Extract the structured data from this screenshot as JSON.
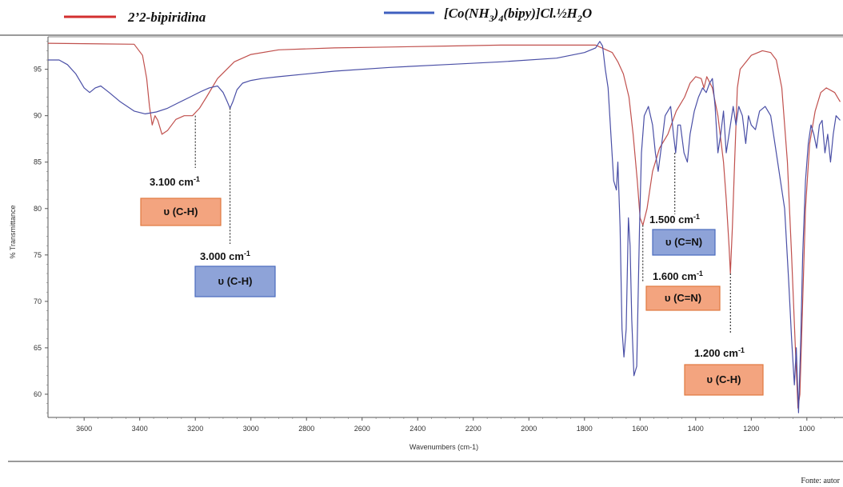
{
  "legend": {
    "series_a": "2’2-bipiridina",
    "series_b": "[Co(NH",
    "series_b_sub1": "3",
    "series_b_mid": ")",
    "series_b_sub2": "4",
    "series_b_end": "(bipy)]Cl.½H",
    "series_b_sub3": "2",
    "series_b_tail": "O"
  },
  "source": "Fonte: autor",
  "colors": {
    "series_a": "#c0504d",
    "series_b": "#4a4fa6",
    "legend_a": "#d32f2f",
    "legend_b": "#3f5fbf",
    "box_orange": "#f3a47f",
    "box_orange_border": "#e0793f",
    "box_blue": "#8ea3d8",
    "box_blue_border": "#4a6bbf"
  },
  "chart_data": {
    "type": "line",
    "xlabel": "Wavenumbers (cm-1)",
    "ylabel": "% Transmittance",
    "xlim": [
      3730,
      870
    ],
    "ylim": [
      57.5,
      98.5
    ],
    "x_reversed": true,
    "x_ticks": [
      3600,
      3400,
      3200,
      3000,
      2800,
      2600,
      2400,
      2200,
      2000,
      1800,
      1600,
      1400,
      1200,
      1000
    ],
    "y_ticks": [
      60,
      65,
      70,
      75,
      80,
      85,
      90,
      95
    ],
    "series": [
      {
        "name": "2’2-bipiridina",
        "points": [
          [
            3730,
            97.8
          ],
          [
            3420,
            97.7
          ],
          [
            3390,
            96.5
          ],
          [
            3375,
            94
          ],
          [
            3365,
            91
          ],
          [
            3355,
            89
          ],
          [
            3345,
            90
          ],
          [
            3335,
            89.5
          ],
          [
            3320,
            88
          ],
          [
            3300,
            88.4
          ],
          [
            3270,
            89.6
          ],
          [
            3240,
            90
          ],
          [
            3210,
            90
          ],
          [
            3185,
            90.8
          ],
          [
            3160,
            92
          ],
          [
            3120,
            94
          ],
          [
            3060,
            95.8
          ],
          [
            3000,
            96.6
          ],
          [
            2900,
            97.1
          ],
          [
            2700,
            97.3
          ],
          [
            2500,
            97.4
          ],
          [
            2300,
            97.5
          ],
          [
            2100,
            97.6
          ],
          [
            1900,
            97.6
          ],
          [
            1760,
            97.6
          ],
          [
            1700,
            96.8
          ],
          [
            1680,
            95.8
          ],
          [
            1660,
            94.5
          ],
          [
            1640,
            92
          ],
          [
            1625,
            88
          ],
          [
            1610,
            83
          ],
          [
            1600,
            79
          ],
          [
            1590,
            78.2
          ],
          [
            1575,
            80
          ],
          [
            1555,
            84
          ],
          [
            1530,
            86.5
          ],
          [
            1500,
            88
          ],
          [
            1470,
            90.5
          ],
          [
            1440,
            92
          ],
          [
            1420,
            93.5
          ],
          [
            1400,
            94.2
          ],
          [
            1380,
            94
          ],
          [
            1370,
            93
          ],
          [
            1360,
            94.2
          ],
          [
            1340,
            93
          ],
          [
            1320,
            90
          ],
          [
            1300,
            85
          ],
          [
            1290,
            81
          ],
          [
            1280,
            76
          ],
          [
            1275,
            73
          ],
          [
            1268,
            78
          ],
          [
            1260,
            85
          ],
          [
            1250,
            93
          ],
          [
            1240,
            95
          ],
          [
            1200,
            96.5
          ],
          [
            1160,
            97
          ],
          [
            1130,
            96.8
          ],
          [
            1110,
            96
          ],
          [
            1090,
            93
          ],
          [
            1070,
            85
          ],
          [
            1055,
            75
          ],
          [
            1040,
            64
          ],
          [
            1032,
            58.5
          ],
          [
            1025,
            60
          ],
          [
            1015,
            70
          ],
          [
            1005,
            80
          ],
          [
            990,
            87
          ],
          [
            970,
            90.5
          ],
          [
            950,
            92.5
          ],
          [
            930,
            93
          ],
          [
            900,
            92.5
          ],
          [
            880,
            91.5
          ]
        ]
      },
      {
        "name": "[Co(NH3)4(bipy)]Cl.½H2O",
        "points": [
          [
            3730,
            96
          ],
          [
            3690,
            96
          ],
          [
            3660,
            95.5
          ],
          [
            3630,
            94.5
          ],
          [
            3600,
            93
          ],
          [
            3580,
            92.5
          ],
          [
            3560,
            93
          ],
          [
            3540,
            93.2
          ],
          [
            3510,
            92.5
          ],
          [
            3470,
            91.5
          ],
          [
            3420,
            90.5
          ],
          [
            3380,
            90.2
          ],
          [
            3340,
            90.4
          ],
          [
            3300,
            90.8
          ],
          [
            3260,
            91.4
          ],
          [
            3220,
            92
          ],
          [
            3180,
            92.6
          ],
          [
            3150,
            93
          ],
          [
            3120,
            93.2
          ],
          [
            3100,
            92.5
          ],
          [
            3085,
            91.5
          ],
          [
            3075,
            90.8
          ],
          [
            3065,
            91.5
          ],
          [
            3050,
            92.8
          ],
          [
            3030,
            93.5
          ],
          [
            3000,
            93.8
          ],
          [
            2960,
            94
          ],
          [
            2900,
            94.2
          ],
          [
            2700,
            94.8
          ],
          [
            2500,
            95.2
          ],
          [
            2300,
            95.5
          ],
          [
            2100,
            95.8
          ],
          [
            1900,
            96.2
          ],
          [
            1800,
            96.8
          ],
          [
            1760,
            97.3
          ],
          [
            1745,
            98
          ],
          [
            1735,
            97.5
          ],
          [
            1725,
            95
          ],
          [
            1715,
            93
          ],
          [
            1705,
            88
          ],
          [
            1695,
            83
          ],
          [
            1685,
            82
          ],
          [
            1680,
            85
          ],
          [
            1672,
            78
          ],
          [
            1665,
            67
          ],
          [
            1658,
            64
          ],
          [
            1650,
            67
          ],
          [
            1642,
            79
          ],
          [
            1636,
            76
          ],
          [
            1630,
            68
          ],
          [
            1622,
            62
          ],
          [
            1612,
            63
          ],
          [
            1602,
            78
          ],
          [
            1595,
            86
          ],
          [
            1585,
            90
          ],
          [
            1570,
            91
          ],
          [
            1555,
            89
          ],
          [
            1545,
            86
          ],
          [
            1535,
            84
          ],
          [
            1522,
            87
          ],
          [
            1510,
            90
          ],
          [
            1490,
            91
          ],
          [
            1480,
            88
          ],
          [
            1472,
            86
          ],
          [
            1464,
            89
          ],
          [
            1455,
            89
          ],
          [
            1442,
            86
          ],
          [
            1430,
            85
          ],
          [
            1420,
            88
          ],
          [
            1405,
            90.5
          ],
          [
            1390,
            92
          ],
          [
            1375,
            93
          ],
          [
            1362,
            92.5
          ],
          [
            1350,
            93.5
          ],
          [
            1340,
            94
          ],
          [
            1330,
            91
          ],
          [
            1320,
            86
          ],
          [
            1310,
            88
          ],
          [
            1300,
            90.5
          ],
          [
            1290,
            86
          ],
          [
            1280,
            88
          ],
          [
            1265,
            91
          ],
          [
            1255,
            89
          ],
          [
            1245,
            91
          ],
          [
            1232,
            90
          ],
          [
            1220,
            87
          ],
          [
            1210,
            90
          ],
          [
            1200,
            89
          ],
          [
            1185,
            88.5
          ],
          [
            1170,
            90.5
          ],
          [
            1150,
            91
          ],
          [
            1130,
            90
          ],
          [
            1110,
            86
          ],
          [
            1095,
            83
          ],
          [
            1080,
            80
          ],
          [
            1065,
            72
          ],
          [
            1055,
            66
          ],
          [
            1045,
            61
          ],
          [
            1038,
            65
          ],
          [
            1030,
            58
          ],
          [
            1022,
            66
          ],
          [
            1015,
            75
          ],
          [
            1005,
            83
          ],
          [
            995,
            87
          ],
          [
            985,
            89
          ],
          [
            975,
            88
          ],
          [
            965,
            86.5
          ],
          [
            955,
            89
          ],
          [
            945,
            89.5
          ],
          [
            935,
            86
          ],
          [
            925,
            88
          ],
          [
            915,
            85
          ],
          [
            905,
            88
          ],
          [
            895,
            90
          ],
          [
            880,
            89.5
          ]
        ]
      }
    ],
    "annotations": [
      {
        "value": "3.100 cm",
        "sup": "-1",
        "label": "υ (C-H)",
        "x": 3200,
        "y": 90,
        "box": "orange"
      },
      {
        "value": "3.000 cm",
        "sup": "-1",
        "label": "υ (C-H)",
        "x": 3075,
        "y": 90.8,
        "box": "blue"
      },
      {
        "value": "1.500 cm",
        "sup": "-1",
        "label": "υ (C=N)",
        "x": 1475,
        "y": 86,
        "box": "blue"
      },
      {
        "value": "1.600 cm",
        "sup": "-1",
        "label": "υ (C=N)",
        "x": 1590,
        "y": 78.2,
        "box": "orange"
      },
      {
        "value": "1.200 cm",
        "sup": "-1",
        "label": "υ (C-H)",
        "x": 1275,
        "y": 73,
        "box": "orange"
      }
    ]
  }
}
